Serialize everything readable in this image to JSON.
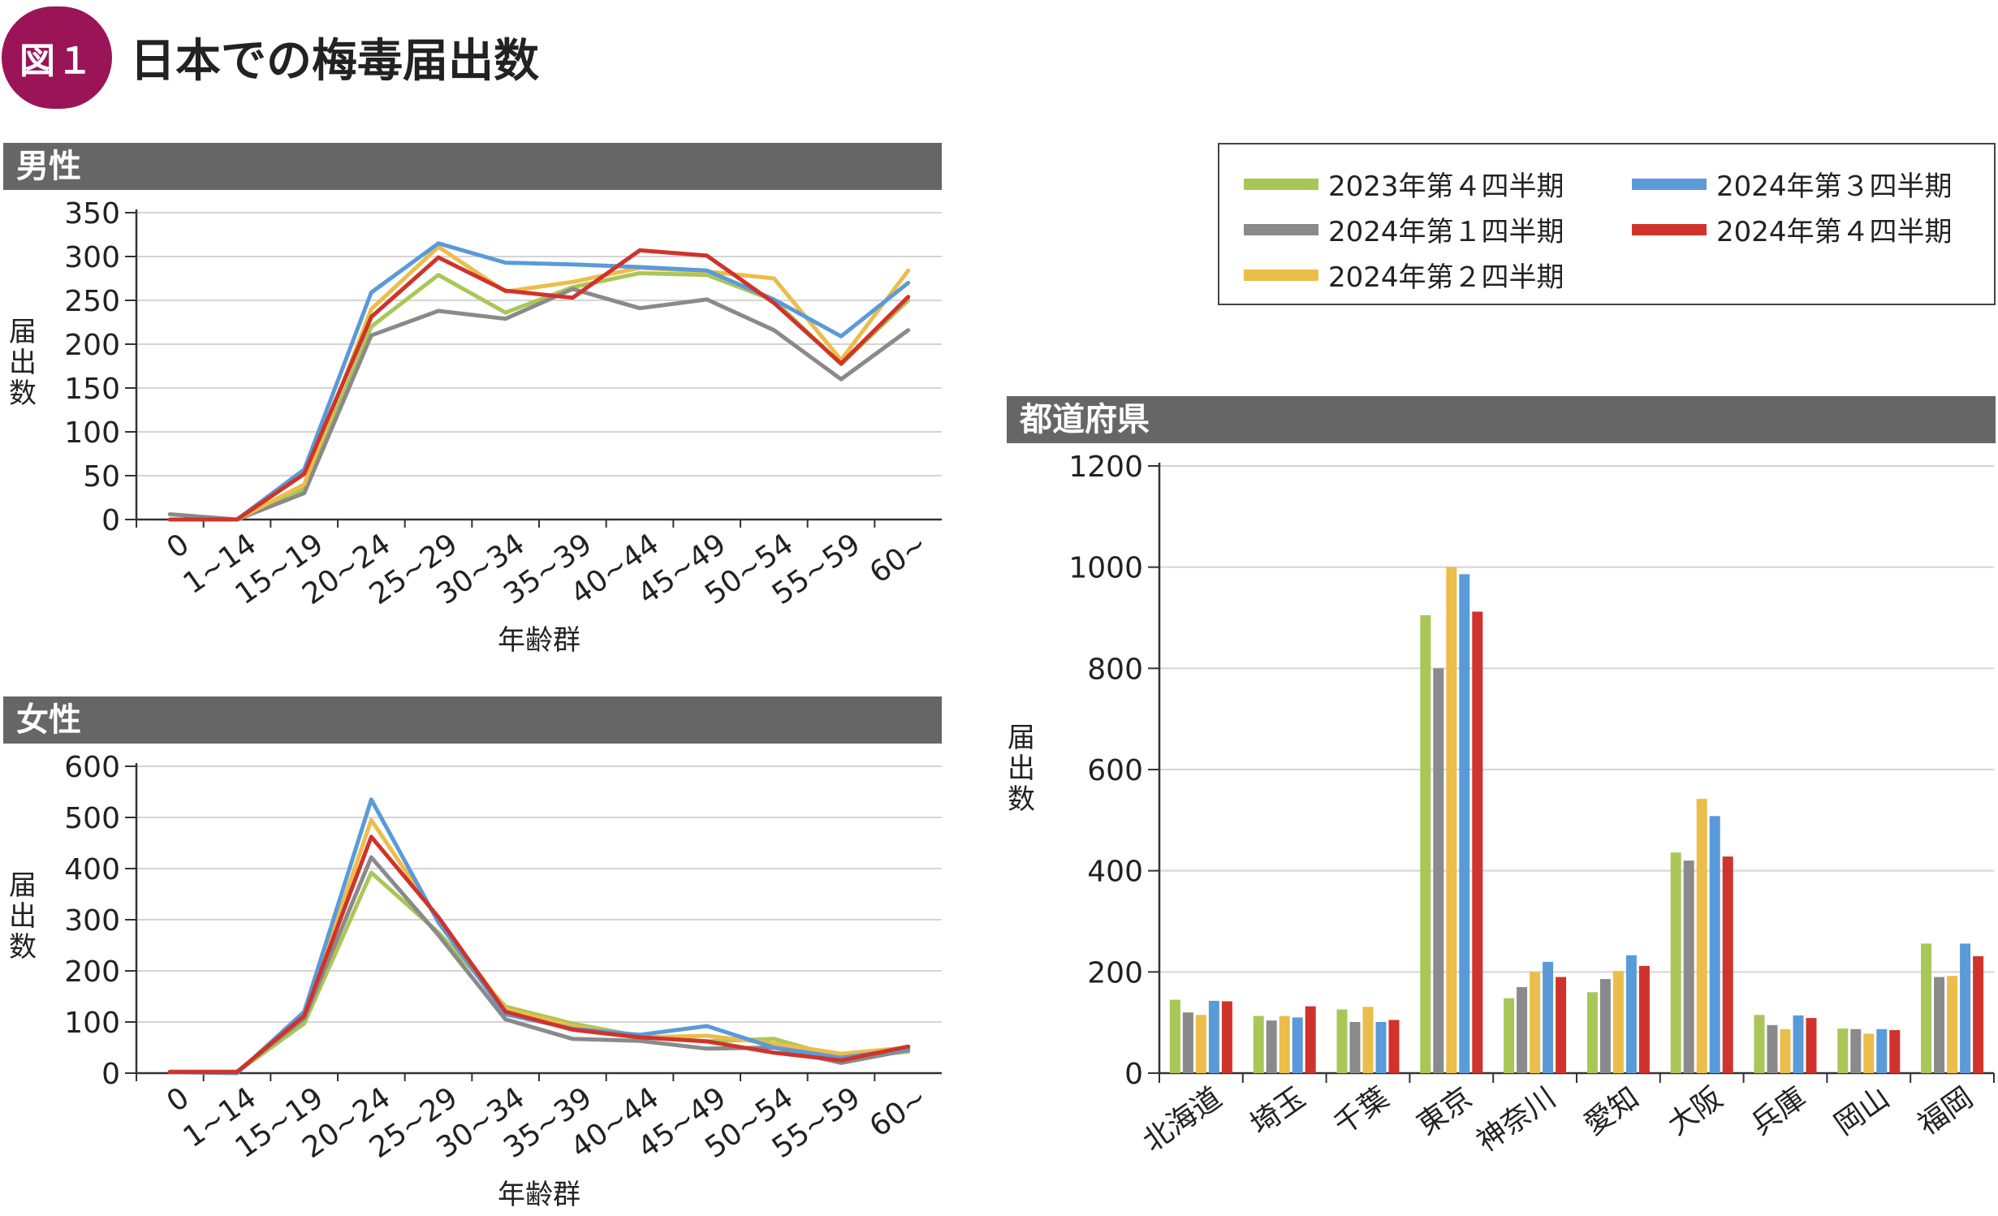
{
  "figure": {
    "badge": "図１",
    "title": "日本での梅毒届出数"
  },
  "legend": [
    {
      "label": "2023年第４四半期",
      "color": "#a9c757"
    },
    {
      "label": "2024年第１四半期",
      "color": "#8a8a8a"
    },
    {
      "label": "2024年第２四半期",
      "color": "#ebbd4a"
    },
    {
      "label": "2024年第３四半期",
      "color": "#5b9ad9"
    },
    {
      "label": "2024年第４四半期",
      "color": "#d0332b"
    }
  ],
  "chart_data": [
    {
      "type": "line",
      "title": "男性",
      "xlabel": "年齢群",
      "ylabel": "届出数",
      "ylim": [
        0,
        350
      ],
      "yticks": [
        "0",
        "50",
        "100",
        "150",
        "200",
        "250",
        "300",
        "350"
      ],
      "categories": [
        "0",
        "1~14",
        "15~19",
        "20~24",
        "25~29",
        "30~34",
        "35~39",
        "40~44",
        "45~49",
        "50~54",
        "55~59",
        "60~"
      ],
      "series": [
        {
          "name": "2023年第４四半期",
          "values": [
            0,
            0,
            35,
            220,
            279,
            236,
            265,
            281,
            279,
            250,
            177,
            250
          ]
        },
        {
          "name": "2024年第１四半期",
          "values": [
            6,
            0,
            30,
            210,
            238,
            229,
            263,
            241,
            251,
            216,
            160,
            216
          ]
        },
        {
          "name": "2024年第２四半期",
          "values": [
            0,
            0,
            40,
            240,
            311,
            260,
            271,
            287,
            283,
            275,
            182,
            284
          ]
        },
        {
          "name": "2024年第３四半期",
          "values": [
            0,
            0,
            57,
            259,
            315,
            293,
            291,
            288,
            284,
            251,
            209,
            270
          ]
        },
        {
          "name": "2024年第４四半期",
          "values": [
            0,
            0,
            52,
            231,
            299,
            261,
            253,
            307,
            301,
            247,
            178,
            254
          ]
        }
      ]
    },
    {
      "type": "line",
      "title": "女性",
      "xlabel": "年齢群",
      "ylabel": "届出数",
      "ylim": [
        0,
        600
      ],
      "yticks": [
        "0",
        "100",
        "200",
        "300",
        "400",
        "500",
        "600"
      ],
      "categories": [
        "0",
        "1~14",
        "15~19",
        "20~24",
        "25~29",
        "30~34",
        "35~39",
        "40~44",
        "45~49",
        "50~54",
        "55~59",
        "60~"
      ],
      "series": [
        {
          "name": "2023年第４四半期",
          "values": [
            2,
            2,
            97,
            392,
            275,
            130,
            97,
            72,
            62,
            67,
            30,
            42
          ]
        },
        {
          "name": "2024年第１四半期",
          "values": [
            3,
            3,
            107,
            422,
            270,
            105,
            67,
            63,
            48,
            50,
            20,
            45
          ]
        },
        {
          "name": "2024年第２四半期",
          "values": [
            2,
            2,
            112,
            495,
            300,
            125,
            92,
            70,
            73,
            58,
            38,
            50
          ]
        },
        {
          "name": "2024年第３四半期",
          "values": [
            2,
            0,
            120,
            535,
            295,
            115,
            87,
            75,
            92,
            50,
            30,
            48
          ]
        },
        {
          "name": "2024年第４四半期",
          "values": [
            2,
            2,
            112,
            462,
            305,
            120,
            85,
            70,
            62,
            40,
            25,
            52
          ]
        }
      ]
    },
    {
      "type": "bar",
      "title": "都道府県",
      "xlabel": "",
      "ylabel": "届出数",
      "ylim": [
        0,
        1200
      ],
      "yticks": [
        "0",
        "200",
        "400",
        "600",
        "800",
        "1000",
        "1200"
      ],
      "categories": [
        "北海道",
        "埼玉",
        "千葉",
        "東京",
        "神奈川",
        "愛知",
        "大阪",
        "兵庫",
        "岡山",
        "福岡"
      ],
      "series": [
        {
          "name": "2023年第４四半期",
          "values": [
            145,
            113,
            126,
            905,
            148,
            160,
            436,
            115,
            88,
            256
          ]
        },
        {
          "name": "2024年第１四半期",
          "values": [
            120,
            104,
            101,
            800,
            170,
            186,
            420,
            95,
            87,
            190
          ]
        },
        {
          "name": "2024年第２四半期",
          "values": [
            115,
            113,
            131,
            1000,
            200,
            202,
            542,
            87,
            78,
            192
          ]
        },
        {
          "name": "2024年第３四半期",
          "values": [
            143,
            110,
            101,
            986,
            220,
            233,
            508,
            114,
            87,
            256
          ]
        },
        {
          "name": "2024年第４四半期",
          "values": [
            142,
            132,
            105,
            912,
            190,
            212,
            428,
            109,
            85,
            231
          ]
        }
      ]
    }
  ]
}
